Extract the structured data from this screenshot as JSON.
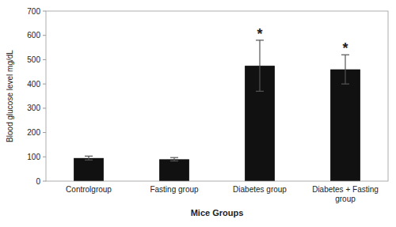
{
  "chart_data": {
    "type": "bar",
    "categories": [
      "Controlgroup",
      "Fasting group",
      "Diabetes group",
      "Diabetes + Fasting group"
    ],
    "values": [
      95,
      90,
      475,
      460
    ],
    "errors": [
      8,
      7,
      105,
      60
    ],
    "color": "#111111",
    "x_label": "Mice Groups",
    "y_label": "Blood glucose  level mg/dL",
    "ylim": [
      0,
      700
    ],
    "yticks": [
      0,
      100,
      200,
      300,
      400,
      500,
      600,
      700
    ],
    "grid": false,
    "annotations": [
      {
        "text": "*",
        "category": "Diabetes group"
      },
      {
        "text": "*",
        "category": "Diabetes + Fasting group"
      }
    ]
  }
}
